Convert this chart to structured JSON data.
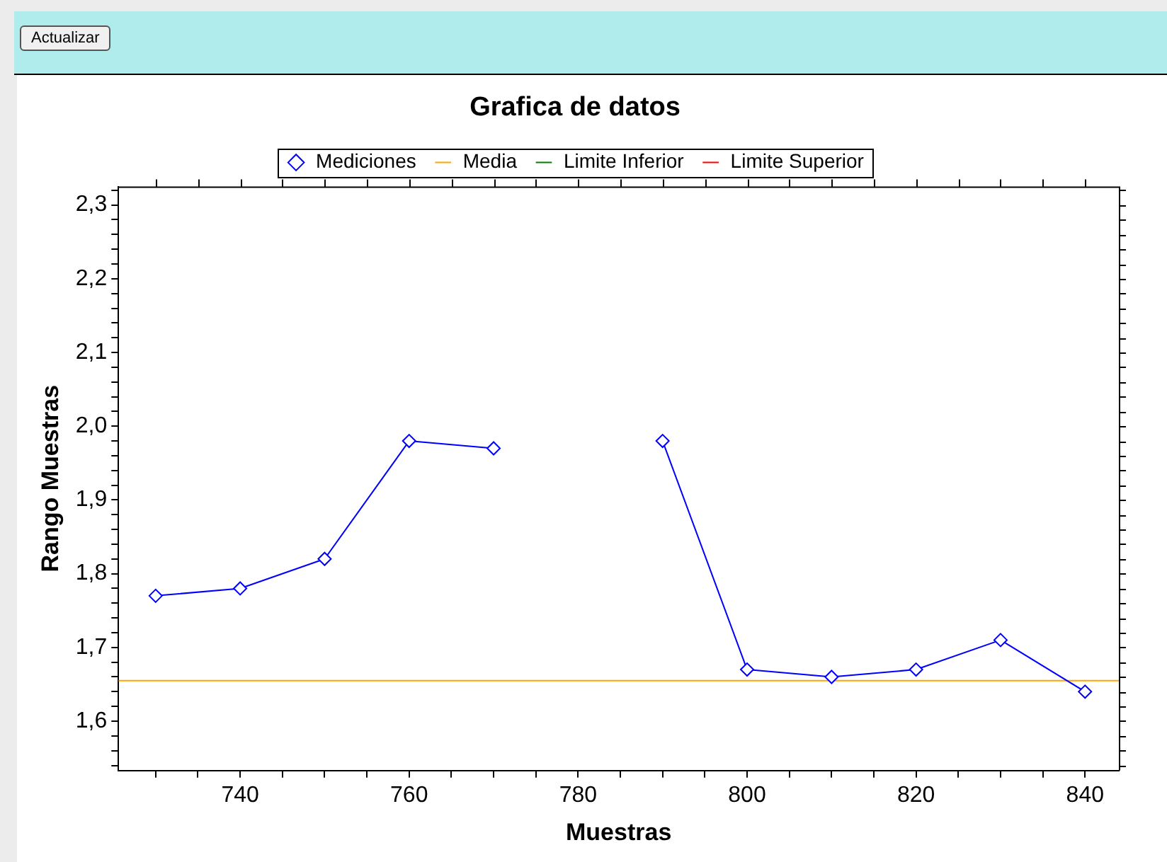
{
  "chart_data": {
    "type": "line",
    "title": "Grafica de datos",
    "xlabel": "Muestras",
    "ylabel": "Rango Muestras",
    "annotations": [
      "Actualizar"
    ],
    "x": [
      730,
      740,
      750,
      760,
      770,
      780,
      790,
      800,
      810,
      820,
      830,
      840
    ],
    "series": [
      {
        "name": "Mediciones",
        "color": "#0000ff",
        "marker": "diamond",
        "values": [
          1.77,
          1.78,
          1.82,
          1.98,
          1.97,
          null,
          1.98,
          1.67,
          1.66,
          1.67,
          1.71,
          1.64
        ]
      },
      {
        "name": "Media",
        "color": "#ffa500",
        "marker": "none",
        "x": [
          725.6,
          844
        ],
        "values": [
          1.655,
          1.655
        ]
      },
      {
        "name": "Limite Inferior",
        "color": "#008000",
        "marker": "none",
        "values": [
          null,
          null,
          null,
          null,
          null,
          null,
          null,
          null,
          null,
          null,
          null,
          null
        ]
      },
      {
        "name": "Limite Superior",
        "color": "#ff0000",
        "marker": "none",
        "values": [
          null,
          null,
          null,
          null,
          null,
          null,
          null,
          null,
          null,
          null,
          null,
          null
        ]
      }
    ],
    "xlim": [
      725.6,
      844
    ],
    "ylim": [
      1.533,
      2.325
    ],
    "xticks": [
      {
        "value": 730,
        "label": null
      },
      {
        "value": 735,
        "label": null
      },
      740,
      {
        "value": 745,
        "label": null
      },
      {
        "value": 750,
        "label": null
      },
      {
        "value": 755,
        "label": null
      },
      760,
      {
        "value": 765,
        "label": null
      },
      {
        "value": 770,
        "label": null
      },
      {
        "value": 775,
        "label": null
      },
      780,
      {
        "value": 785,
        "label": null
      },
      {
        "value": 790,
        "label": null
      },
      {
        "value": 795,
        "label": null
      },
      800,
      {
        "value": 805,
        "label": null
      },
      {
        "value": 810,
        "label": null
      },
      {
        "value": 815,
        "label": null
      },
      820,
      {
        "value": 825,
        "label": null
      },
      {
        "value": 830,
        "label": null
      },
      {
        "value": 835,
        "label": null
      },
      840
    ],
    "yticks": [
      {
        "value": 1.54,
        "label": null
      },
      {
        "value": 1.56,
        "label": null
      },
      {
        "value": 1.58,
        "label": null
      },
      {
        "value": 1.6,
        "label": "1,6"
      },
      {
        "value": 1.62,
        "label": null
      },
      {
        "value": 1.64,
        "label": null
      },
      {
        "value": 1.66,
        "label": null
      },
      {
        "value": 1.68,
        "label": null
      },
      {
        "value": 1.7,
        "label": "1,7"
      },
      {
        "value": 1.72,
        "label": null
      },
      {
        "value": 1.74,
        "label": null
      },
      {
        "value": 1.76,
        "label": null
      },
      {
        "value": 1.78,
        "label": null
      },
      {
        "value": 1.8,
        "label": "1,8"
      },
      {
        "value": 1.82,
        "label": null
      },
      {
        "value": 1.84,
        "label": null
      },
      {
        "value": 1.86,
        "label": null
      },
      {
        "value": 1.88,
        "label": null
      },
      {
        "value": 1.9,
        "label": "1,9"
      },
      {
        "value": 1.92,
        "label": null
      },
      {
        "value": 1.94,
        "label": null
      },
      {
        "value": 1.96,
        "label": null
      },
      {
        "value": 1.98,
        "label": null
      },
      {
        "value": 2.0,
        "label": "2,0"
      },
      {
        "value": 2.02,
        "label": null
      },
      {
        "value": 2.04,
        "label": null
      },
      {
        "value": 2.06,
        "label": null
      },
      {
        "value": 2.08,
        "label": null
      },
      {
        "value": 2.1,
        "label": "2,1"
      },
      {
        "value": 2.12,
        "label": null
      },
      {
        "value": 2.14,
        "label": null
      },
      {
        "value": 2.16,
        "label": null
      },
      {
        "value": 2.18,
        "label": null
      },
      {
        "value": 2.2,
        "label": "2,2"
      },
      {
        "value": 2.22,
        "label": null
      },
      {
        "value": 2.24,
        "label": null
      },
      {
        "value": 2.26,
        "label": null
      },
      {
        "value": 2.28,
        "label": null
      },
      {
        "value": 2.3,
        "label": "2,3"
      },
      {
        "value": 2.32,
        "label": null
      }
    ],
    "grid": false,
    "legend": "top",
    "line_style": "solid"
  }
}
